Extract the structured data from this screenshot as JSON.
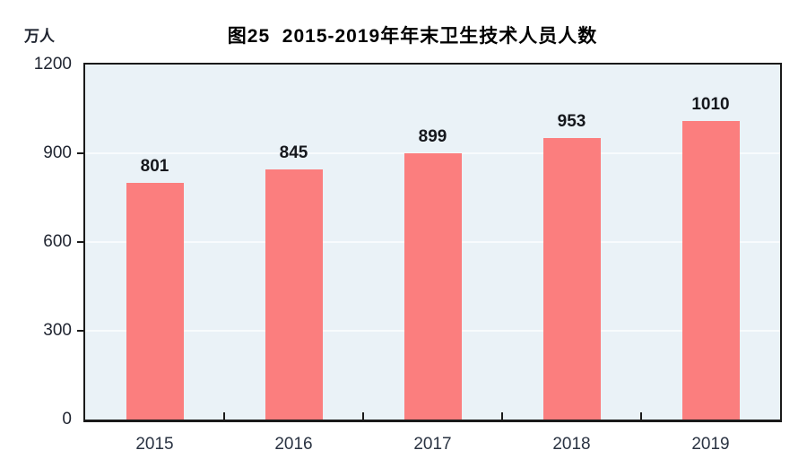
{
  "page": {
    "background": "#FFFFFF"
  },
  "chart_data": {
    "type": "bar",
    "title": "图25  2015-2019年年末卫生技术人员人数",
    "unit_label": "万人",
    "categories": [
      "2015",
      "2016",
      "2017",
      "2018",
      "2019"
    ],
    "values": [
      801,
      845,
      899,
      953,
      1010
    ],
    "xlabel": "",
    "ylabel": "万人",
    "ylim": [
      0,
      1200
    ],
    "yticks": [
      0,
      300,
      600,
      900,
      1200
    ],
    "grid": true,
    "legend": "none",
    "colors": {
      "bar": "#FB7E7E",
      "plot_background": "#EAF2F7",
      "gridline": "#F8FBFD",
      "axis_frame": "#1A1A1A",
      "tick_mark": "#1A1A1A",
      "value_label": "#16181D",
      "axis_label": "#1F2430"
    }
  }
}
